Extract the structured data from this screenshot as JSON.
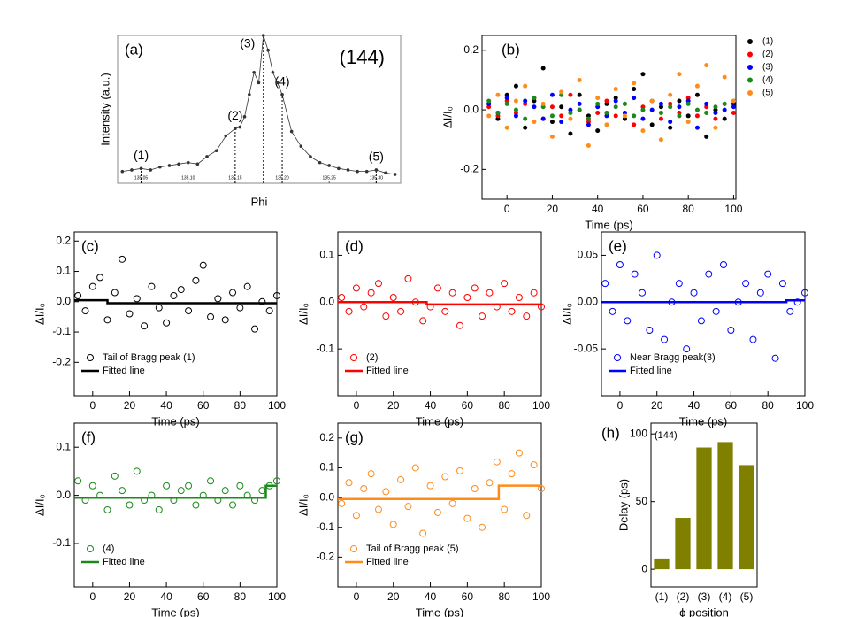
{
  "chart_data": [
    {
      "type": "line",
      "panel_label": "(a)",
      "annotation": "(144)",
      "xlabel": "Phi",
      "ylabel": "Intensity (a.u.)",
      "xlim": [
        135.025,
        135.326
      ],
      "ylim": [
        0,
        100
      ],
      "xticks": [
        135.05,
        {
          "value": 135.1,
          "label": "135.10"
        },
        135.15,
        {
          "value": 135.2,
          "label": "135.20"
        },
        135.25,
        {
          "value": 135.3,
          "label": "135.30"
        }
      ],
      "x": [
        135.03,
        135.04,
        135.05,
        135.06,
        135.07,
        135.08,
        135.09,
        135.1,
        135.11,
        135.12,
        135.13,
        135.14,
        135.15,
        135.155,
        135.16,
        135.165,
        135.17,
        135.175,
        135.18,
        135.185,
        135.19,
        135.195,
        135.2,
        135.21,
        135.22,
        135.23,
        135.24,
        135.25,
        135.26,
        135.27,
        135.28,
        135.29,
        135.3,
        135.31,
        135.32
      ],
      "series": [
        {
          "color": "#333333",
          "marker": "line-dot",
          "values": [
            8,
            9,
            10,
            9,
            11,
            12,
            13,
            14,
            13,
            18,
            22,
            32,
            37,
            38,
            45,
            60,
            75,
            68,
            100,
            90,
            75,
            68,
            60,
            35,
            25,
            18,
            14,
            12,
            10,
            9,
            8,
            8,
            9,
            7,
            6
          ]
        }
      ],
      "markers": [
        {
          "label": "(1)",
          "x": 135.05
        },
        {
          "label": "(2)",
          "x": 135.15
        },
        {
          "label": "(3)",
          "x": 135.18
        },
        {
          "label": "(4)",
          "x": 135.2
        },
        {
          "label": "(5)",
          "x": 135.3
        }
      ]
    },
    {
      "type": "scatter",
      "panel_label": "(b)",
      "xlabel": "Time (ps)",
      "ylabel": "ΔI/I₀",
      "xlim": [
        -11,
        101
      ],
      "ylim": [
        -0.3,
        0.25
      ],
      "xticks": [
        0,
        20,
        40,
        60,
        80,
        100
      ],
      "yticks": [
        -0.2,
        {
          "value": 0,
          "label": "0.0"
        },
        0.2
      ],
      "legend": "outside-right",
      "x": [
        -8,
        -4,
        0,
        4,
        8,
        12,
        16,
        20,
        24,
        28,
        32,
        36,
        40,
        44,
        48,
        52,
        56,
        60,
        64,
        68,
        72,
        76,
        80,
        84,
        88,
        92,
        96,
        100
      ],
      "series": [
        {
          "name": "(1)",
          "color": "#000000",
          "marker": "filled-circle",
          "values": [
            0.02,
            -0.03,
            0.05,
            0.08,
            -0.06,
            0.03,
            0.14,
            -0.04,
            0.01,
            -0.08,
            0.05,
            -0.02,
            -0.07,
            0.02,
            0.04,
            -0.03,
            0.07,
            0.12,
            -0.05,
            0.01,
            -0.06,
            0.03,
            -0.02,
            0.05,
            -0.09,
            0,
            -0.03,
            0.02
          ]
        },
        {
          "name": "(2)",
          "color": "#ff0000",
          "marker": "filled-circle",
          "values": [
            0.01,
            -0.02,
            0.03,
            -0.01,
            0.02,
            0.04,
            -0.03,
            0.01,
            -0.02,
            0.05,
            0,
            -0.04,
            -0.01,
            0.03,
            -0.02,
            0.02,
            -0.05,
            0.01,
            0.03,
            -0.03,
            0.02,
            -0.01,
            0.04,
            -0.02,
            0.01,
            -0.03,
            0.02,
            -0.01
          ]
        },
        {
          "name": "(3)",
          "color": "#0000ff",
          "marker": "filled-circle",
          "values": [
            0.02,
            -0.01,
            0.04,
            -0.02,
            0.03,
            0.01,
            -0.03,
            0.05,
            -0.04,
            0,
            0.02,
            -0.05,
            0.01,
            -0.02,
            0.03,
            -0.01,
            0.04,
            -0.03,
            0,
            0.02,
            -0.04,
            0.01,
            0.03,
            -0.06,
            0.02,
            -0.01,
            0,
            0.01
          ]
        },
        {
          "name": "(4)",
          "color": "#1a8a1a",
          "marker": "filled-circle",
          "values": [
            0.03,
            -0.01,
            0.02,
            0,
            -0.03,
            0.04,
            0.01,
            -0.02,
            0.05,
            -0.01,
            0,
            -0.03,
            0.02,
            -0.01,
            0.01,
            0.02,
            -0.02,
            0,
            0.03,
            -0.01,
            0.01,
            -0.02,
            0.02,
            0,
            -0.01,
            0.01,
            0.02,
            0.03
          ]
        },
        {
          "name": "(5)",
          "color": "#ff8c1a",
          "marker": "filled-circle",
          "values": [
            -0.02,
            0.05,
            -0.06,
            0.03,
            0.08,
            -0.04,
            0.02,
            -0.09,
            0.06,
            -0.03,
            0.1,
            -0.12,
            0.04,
            -0.05,
            0.07,
            -0.02,
            0.09,
            -0.07,
            0.03,
            -0.1,
            0.05,
            0.12,
            -0.04,
            0.08,
            0.15,
            -0.06,
            0.11,
            0.03
          ]
        }
      ]
    },
    {
      "type": "scatter",
      "panel_label": "(c)",
      "xlabel": "Time (ps)",
      "ylabel": "ΔI/I₀",
      "xlim": [
        -10,
        100
      ],
      "ylim": [
        -0.31,
        0.23
      ],
      "xticks": [
        0,
        20,
        40,
        60,
        80,
        100
      ],
      "yticks": [
        -0.2,
        -0.1,
        {
          "value": 0,
          "label": "0.0"
        },
        0.1,
        0.2
      ],
      "legend": "lower-left",
      "x": [
        -8,
        -4,
        0,
        4,
        8,
        12,
        16,
        20,
        24,
        28,
        32,
        36,
        40,
        44,
        48,
        52,
        56,
        60,
        64,
        68,
        72,
        76,
        80,
        84,
        88,
        92,
        96,
        100
      ],
      "series": [
        {
          "name": "Tail of Bragg peak (1)",
          "color": "#000000",
          "marker": "open-circle",
          "values": [
            0.02,
            -0.03,
            0.05,
            0.08,
            -0.06,
            0.03,
            0.14,
            -0.04,
            0.01,
            -0.08,
            0.05,
            -0.02,
            -0.07,
            0.02,
            0.04,
            -0.03,
            0.07,
            0.12,
            -0.05,
            0.01,
            -0.06,
            0.03,
            -0.02,
            0.05,
            -0.09,
            0,
            -0.03,
            0.02
          ]
        },
        {
          "name": "Fitted line",
          "color": "#000000",
          "marker": "line",
          "x": [
            -10,
            8,
            8,
            100
          ],
          "values": [
            0.005,
            0.005,
            -0.005,
            -0.005
          ]
        }
      ]
    },
    {
      "type": "scatter",
      "panel_label": "(d)",
      "xlabel": "Time (ps)",
      "ylabel": "ΔI/I₀",
      "xlim": [
        -10,
        100
      ],
      "ylim": [
        -0.2,
        0.15
      ],
      "xticks": [
        0,
        20,
        40,
        60,
        80,
        100
      ],
      "yticks": [
        -0.1,
        {
          "value": 0,
          "label": "0.0"
        },
        0.1
      ],
      "legend": "lower-left",
      "x": [
        -8,
        -4,
        0,
        4,
        8,
        12,
        16,
        20,
        24,
        28,
        32,
        36,
        40,
        44,
        48,
        52,
        56,
        60,
        64,
        68,
        72,
        76,
        80,
        84,
        88,
        92,
        96,
        100
      ],
      "series": [
        {
          "name": "(2)",
          "color": "#ff0000",
          "marker": "open-circle",
          "values": [
            0.01,
            -0.02,
            0.03,
            -0.01,
            0.02,
            0.04,
            -0.03,
            0.01,
            -0.02,
            0.05,
            0,
            -0.04,
            -0.01,
            0.03,
            -0.02,
            0.02,
            -0.05,
            0.01,
            0.03,
            -0.03,
            0.02,
            -0.01,
            0.04,
            -0.02,
            0.01,
            -0.03,
            0.02,
            -0.01
          ]
        },
        {
          "name": "Fitted line",
          "color": "#ff0000",
          "marker": "line",
          "x": [
            -10,
            38,
            38,
            100
          ],
          "values": [
            0,
            0,
            -0.005,
            -0.005
          ]
        }
      ]
    },
    {
      "type": "scatter",
      "panel_label": "(e)",
      "xlabel": "Time (ps)",
      "ylabel": "ΔI/I₀",
      "xlim": [
        -10,
        100
      ],
      "ylim": [
        -0.1,
        0.075
      ],
      "xticks": [
        0,
        20,
        40,
        60,
        80,
        100
      ],
      "yticks": [
        -0.05,
        {
          "value": 0,
          "label": "0.00"
        },
        0.05
      ],
      "legend": "lower-left",
      "x": [
        -8,
        -4,
        0,
        4,
        8,
        12,
        16,
        20,
        24,
        28,
        32,
        36,
        40,
        44,
        48,
        52,
        56,
        60,
        64,
        68,
        72,
        76,
        80,
        84,
        88,
        92,
        96,
        100
      ],
      "series": [
        {
          "name": "Near Bragg peak(3)",
          "color": "#0000ff",
          "marker": "open-circle",
          "values": [
            0.02,
            -0.01,
            0.04,
            -0.02,
            0.03,
            0.01,
            -0.03,
            0.05,
            -0.04,
            0,
            0.02,
            -0.05,
            0.01,
            -0.02,
            0.03,
            -0.01,
            0.04,
            -0.03,
            0,
            0.02,
            -0.04,
            0.01,
            0.03,
            -0.06,
            0.02,
            -0.01,
            0,
            0.01
          ]
        },
        {
          "name": "Fitted line",
          "color": "#0000ff",
          "marker": "line",
          "x": [
            -10,
            90,
            90,
            100
          ],
          "values": [
            0,
            0,
            0.002,
            0.002
          ]
        }
      ]
    },
    {
      "type": "scatter",
      "panel_label": "(f)",
      "xlabel": "Time (ps)",
      "ylabel": "ΔI/I₀",
      "xlim": [
        -10,
        100
      ],
      "ylim": [
        -0.19,
        0.15
      ],
      "xticks": [
        0,
        20,
        40,
        60,
        80,
        100
      ],
      "yticks": [
        -0.1,
        {
          "value": 0,
          "label": "0.0"
        },
        0.1
      ],
      "legend": "lower-left",
      "x": [
        -8,
        -4,
        0,
        4,
        8,
        12,
        16,
        20,
        24,
        28,
        32,
        36,
        40,
        44,
        48,
        52,
        56,
        60,
        64,
        68,
        72,
        76,
        80,
        84,
        88,
        92,
        96,
        100
      ],
      "series": [
        {
          "name": "(4)",
          "color": "#1a8a1a",
          "marker": "open-circle",
          "values": [
            0.03,
            -0.01,
            0.02,
            0,
            -0.03,
            0.04,
            0.01,
            -0.02,
            0.05,
            -0.01,
            0,
            -0.03,
            0.02,
            -0.01,
            0.01,
            0.02,
            -0.02,
            0,
            0.03,
            -0.01,
            0.01,
            -0.02,
            0.02,
            0,
            -0.01,
            0.01,
            0.02,
            0.03
          ]
        },
        {
          "name": "Fitted line",
          "color": "#1a8a1a",
          "marker": "line",
          "x": [
            -10,
            94,
            94,
            100
          ],
          "values": [
            -0.005,
            -0.005,
            0.02,
            0.02
          ]
        }
      ]
    },
    {
      "type": "scatter",
      "panel_label": "(g)",
      "xlabel": "Time (ps)",
      "ylabel": "ΔI/I₀",
      "xlim": [
        -10,
        100
      ],
      "ylim": [
        -0.3,
        0.25
      ],
      "xticks": [
        0,
        20,
        40,
        60,
        80,
        100
      ],
      "yticks": [
        -0.2,
        -0.1,
        {
          "value": 0,
          "label": "0.0"
        },
        0.1,
        0.2
      ],
      "legend": "lower-left",
      "x": [
        -8,
        -4,
        0,
        4,
        8,
        12,
        16,
        20,
        24,
        28,
        32,
        36,
        40,
        44,
        48,
        52,
        56,
        60,
        64,
        68,
        72,
        76,
        80,
        84,
        88,
        92,
        96,
        100
      ],
      "series": [
        {
          "name": "Tail of Bragg peak (5)",
          "color": "#ff8c1a",
          "marker": "open-circle",
          "values": [
            -0.02,
            0.05,
            -0.06,
            0.03,
            0.08,
            -0.04,
            0.02,
            -0.09,
            0.06,
            -0.03,
            0.1,
            -0.12,
            0.04,
            -0.05,
            0.07,
            -0.02,
            0.09,
            -0.07,
            0.03,
            -0.1,
            0.05,
            0.12,
            -0.04,
            0.08,
            0.15,
            -0.06,
            0.11,
            0.03
          ]
        },
        {
          "name": "Fitted line",
          "color": "#ff8c1a",
          "marker": "line",
          "x": [
            -10,
            77,
            77,
            100
          ],
          "values": [
            -0.005,
            -0.005,
            0.04,
            0.04
          ]
        }
      ]
    },
    {
      "type": "bar",
      "panel_label": "(h)",
      "annotation": "(144)",
      "xlabel": "ϕ position",
      "ylabel": "Delay (ps)",
      "categories": [
        "(1)",
        "(2)",
        "(3)",
        "(4)",
        "(5)"
      ],
      "values": [
        8,
        38,
        90,
        94,
        77
      ],
      "color": "#808000",
      "ylim": [
        -13,
        108
      ],
      "yticks": [
        0,
        50,
        100
      ]
    }
  ]
}
